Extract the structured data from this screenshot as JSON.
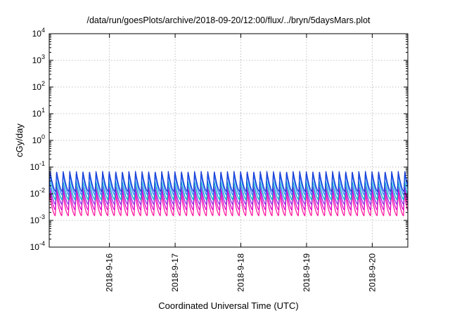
{
  "chart_data": {
    "type": "line",
    "title": "/data/run/goesPlots/archive/2018-09-20/12:00/flux/../bryn/5daysMars.plot",
    "xlabel": "Coordinated Universal Time (UTC)",
    "ylabel": "cGy/day",
    "yscale": "log",
    "ylim": [
      0.0001,
      10000
    ],
    "y_ticks": [
      {
        "value": 0.0001,
        "base": "10",
        "exp": "-4"
      },
      {
        "value": 0.001,
        "base": "10",
        "exp": "-3"
      },
      {
        "value": 0.01,
        "base": "10",
        "exp": "-2"
      },
      {
        "value": 0.1,
        "base": "10",
        "exp": "-1"
      },
      {
        "value": 1,
        "base": "10",
        "exp": "0"
      },
      {
        "value": 10,
        "base": "10",
        "exp": "1"
      },
      {
        "value": 100,
        "base": "10",
        "exp": "2"
      },
      {
        "value": 1000,
        "base": "10",
        "exp": "3"
      },
      {
        "value": 10000,
        "base": "10",
        "exp": "4"
      }
    ],
    "xlim": [
      "2018-09-15T02:00",
      "2018-09-20T13:00"
    ],
    "x_ticks": [
      "2018-9-16",
      "2018-9-17",
      "2018-9-18",
      "2018-9-19",
      "2018-9-20"
    ],
    "grid": true,
    "pattern": {
      "sawtooth_cycles_per_day": 10,
      "description_values": "each series rises sharply to a peak then decays over ~2.4 h, repeating"
    },
    "series": [
      {
        "color": "#1a3fd6",
        "peak": 0.07,
        "trough": 0.012
      },
      {
        "color": "#2a7fff",
        "peak": 0.055,
        "trough": 0.009
      },
      {
        "color": "#00b0c8",
        "peak": 0.03,
        "trough": 0.006
      },
      {
        "color": "#8a2be2",
        "peak": 0.02,
        "trough": 0.004
      },
      {
        "color": "#e000c8",
        "peak": 0.015,
        "trough": 0.0025
      },
      {
        "color": "#ff1aa0",
        "peak": 0.01,
        "trough": 0.0015
      }
    ]
  }
}
